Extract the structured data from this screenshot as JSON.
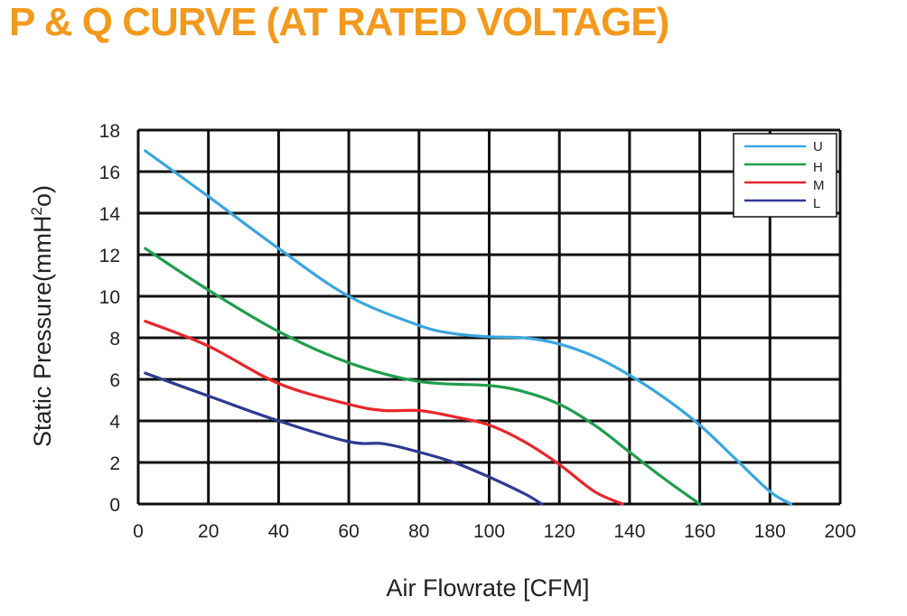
{
  "colors": {
    "title": "#f29a1d",
    "U": "#3aa6dd",
    "H": "#1f9e4d",
    "M": "#e8262a",
    "L": "#2e3a92"
  },
  "chart_data": {
    "type": "line",
    "title": "P & Q CURVE (AT RATED VOLTAGE)",
    "xlabel": "Air  Flowrate   [CFM]",
    "ylabel_main": "Static Pressure(mmH",
    "ylabel_sup": "2",
    "ylabel_tail": "o)",
    "xlim": [
      0,
      200
    ],
    "ylim": [
      0,
      18
    ],
    "xticks": [
      "0",
      "20",
      "40",
      "60",
      "80",
      "100",
      "120",
      "140",
      "160",
      "180",
      "200"
    ],
    "yticks": [
      "0",
      "2",
      "4",
      "6",
      "8",
      "10",
      "12",
      "14",
      "16",
      "18"
    ],
    "grid": true,
    "legend_position": "top-right",
    "series": [
      {
        "name": "U",
        "color": "#3aa6dd",
        "x": [
          2,
          20,
          40,
          60,
          80,
          90,
          100,
          110,
          120,
          130,
          140,
          150,
          160,
          170,
          180,
          186
        ],
        "y": [
          17.0,
          14.8,
          12.3,
          10.0,
          8.6,
          8.2,
          8.05,
          8.0,
          7.7,
          7.1,
          6.2,
          5.1,
          3.8,
          2.2,
          0.6,
          0
        ]
      },
      {
        "name": "H",
        "color": "#1f9e4d",
        "x": [
          2,
          20,
          40,
          60,
          80,
          100,
          110,
          120,
          130,
          140,
          150,
          160
        ],
        "y": [
          12.3,
          10.3,
          8.3,
          6.8,
          5.9,
          5.7,
          5.4,
          4.8,
          3.8,
          2.5,
          1.2,
          0
        ]
      },
      {
        "name": "M",
        "color": "#e8262a",
        "x": [
          2,
          20,
          40,
          60,
          70,
          80,
          90,
          100,
          110,
          120,
          130,
          138
        ],
        "y": [
          8.8,
          7.6,
          5.8,
          4.8,
          4.5,
          4.5,
          4.2,
          3.8,
          3.0,
          1.9,
          0.6,
          0
        ]
      },
      {
        "name": "L",
        "color": "#2e3a92",
        "x": [
          2,
          20,
          40,
          60,
          70,
          80,
          90,
          100,
          110,
          115
        ],
        "y": [
          6.3,
          5.2,
          4.0,
          3.0,
          2.9,
          2.5,
          2.0,
          1.3,
          0.5,
          0
        ]
      }
    ]
  }
}
